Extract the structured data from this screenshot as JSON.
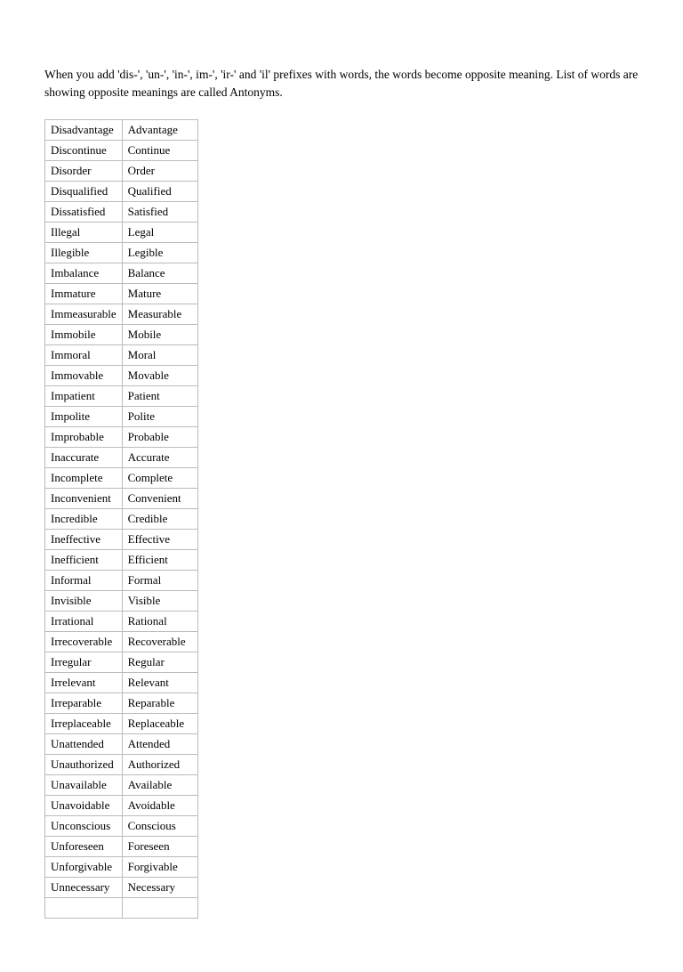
{
  "intro_text": "When you add 'dis-', 'un-', 'in-', im-', 'ir-' and 'il' prefixes with words, the words become opposite meaning.  List of words are showing opposite meanings are called Antonyms.",
  "antonyms_table": {
    "type": "table",
    "columns": [
      "prefixed",
      "base"
    ],
    "border_color": "#bbbbbb",
    "cell_padding": "2px 6px",
    "font_size": 13,
    "rows": [
      [
        "Disadvantage",
        "Advantage"
      ],
      [
        "Discontinue",
        "Continue"
      ],
      [
        "Disorder",
        "Order"
      ],
      [
        "Disqualified",
        "Qualified"
      ],
      [
        "Dissatisfied",
        "Satisfied"
      ],
      [
        "Illegal",
        "Legal"
      ],
      [
        "Illegible",
        "Legible"
      ],
      [
        "Imbalance",
        "Balance"
      ],
      [
        "Immature",
        "Mature"
      ],
      [
        "Immeasurable",
        "Measurable"
      ],
      [
        "Immobile",
        "Mobile"
      ],
      [
        "Immoral",
        "Moral"
      ],
      [
        "Immovable",
        "Movable"
      ],
      [
        "Impatient",
        "Patient"
      ],
      [
        "Impolite",
        "Polite"
      ],
      [
        "Improbable",
        "Probable"
      ],
      [
        "Inaccurate",
        "Accurate"
      ],
      [
        "Incomplete",
        "Complete"
      ],
      [
        "Inconvenient",
        "Convenient"
      ],
      [
        "Incredible",
        "Credible"
      ],
      [
        "Ineffective",
        "Effective"
      ],
      [
        "Inefficient",
        "Efficient"
      ],
      [
        "Informal",
        "Formal"
      ],
      [
        "Invisible",
        "Visible"
      ],
      [
        "Irrational",
        "Rational"
      ],
      [
        "Irrecoverable",
        "Recoverable"
      ],
      [
        "Irregular",
        "Regular"
      ],
      [
        "Irrelevant",
        "Relevant"
      ],
      [
        "Irreparable",
        "Reparable"
      ],
      [
        "Irreplaceable",
        "Replaceable"
      ],
      [
        "Unattended",
        "Attended"
      ],
      [
        "Unauthorized",
        "Authorized"
      ],
      [
        "Unavailable",
        "Available"
      ],
      [
        "Unavoidable",
        "Avoidable"
      ],
      [
        "Unconscious",
        "Conscious"
      ],
      [
        "Unforeseen",
        "Foreseen"
      ],
      [
        "Unforgivable",
        "Forgivable"
      ],
      [
        "Unnecessary",
        "Necessary"
      ],
      [
        "",
        ""
      ]
    ]
  }
}
